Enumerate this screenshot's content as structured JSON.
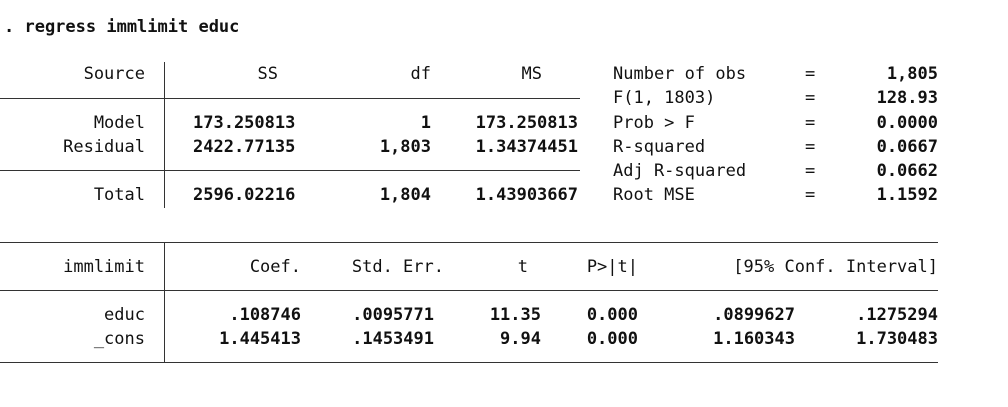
{
  "command": ". regress immlimit educ",
  "anova": {
    "headers": {
      "source": "Source",
      "ss": "SS",
      "df": "df",
      "ms": "MS"
    },
    "rows": [
      {
        "source": "Model",
        "ss": "173.250813",
        "df": "1",
        "ms": "173.250813"
      },
      {
        "source": "Residual",
        "ss": "2422.77135",
        "df": "1,803",
        "ms": "1.34374451"
      }
    ],
    "total": {
      "source": "Total",
      "ss": "2596.02216",
      "df": "1,804",
      "ms": "1.43903667"
    }
  },
  "stats": [
    {
      "label": "Number of obs",
      "eq": "=",
      "value": "1,805"
    },
    {
      "label": "F(1, 1803)",
      "eq": "=",
      "value": "128.93"
    },
    {
      "label": "Prob > F",
      "eq": "=",
      "value": "0.0000"
    },
    {
      "label": "R-squared",
      "eq": "=",
      "value": "0.0667"
    },
    {
      "label": "Adj R-squared",
      "eq": "=",
      "value": "0.0662"
    },
    {
      "label": "Root MSE",
      "eq": "=",
      "value": "1.1592"
    }
  ],
  "coef_table": {
    "headers": {
      "var": "immlimit",
      "coef": "Coef.",
      "se": "Std. Err.",
      "t": "t",
      "p": "P>|t|",
      "ci": "[95% Conf. Interval]"
    },
    "rows": [
      {
        "var": "educ",
        "coef": ".108746",
        "se": ".0095771",
        "t": "11.35",
        "p": "0.000",
        "ci_low": ".0899627",
        "ci_high": ".1275294"
      },
      {
        "var": "_cons",
        "coef": "1.445413",
        "se": ".1453491",
        "t": "9.94",
        "p": "0.000",
        "ci_low": "1.160343",
        "ci_high": "1.730483"
      }
    ]
  }
}
